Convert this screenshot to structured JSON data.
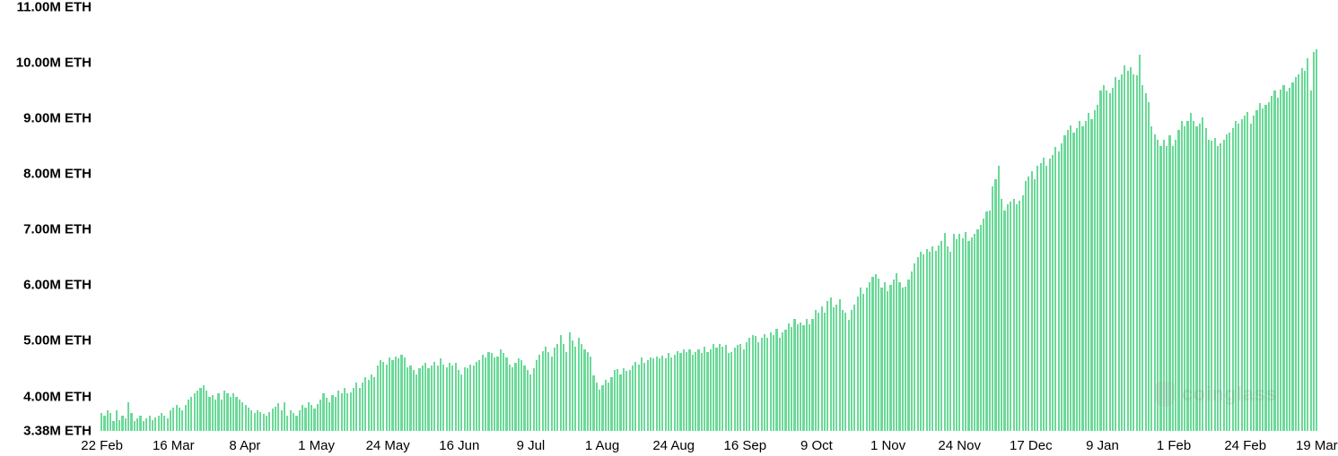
{
  "chart": {
    "type": "bar",
    "background_color": "#ffffff",
    "bar_color": "#6bd998",
    "axis_font_color": "#000000",
    "y_label_fontsize": 15,
    "x_label_fontsize": 15,
    "y_label_fontweight": 600,
    "x_label_fontweight": 500,
    "ymin": 3.38,
    "ymax": 11.0,
    "y_ticks": [
      {
        "v": 11.0,
        "label": "11.00M ETH"
      },
      {
        "v": 10.0,
        "label": "10.00M ETH"
      },
      {
        "v": 9.0,
        "label": "9.00M ETH"
      },
      {
        "v": 8.0,
        "label": "8.00M ETH"
      },
      {
        "v": 7.0,
        "label": "7.00M ETH"
      },
      {
        "v": 6.0,
        "label": "6.00M ETH"
      },
      {
        "v": 5.0,
        "label": "5.00M ETH"
      },
      {
        "v": 4.0,
        "label": "4.00M ETH"
      },
      {
        "v": 3.38,
        "label": "3.38M ETH"
      }
    ],
    "x_ticks": [
      {
        "label": "22 Feb"
      },
      {
        "label": "16 Mar"
      },
      {
        "label": "8 Apr"
      },
      {
        "label": "1 May"
      },
      {
        "label": "24 May"
      },
      {
        "label": "16 Jun"
      },
      {
        "label": "9 Jul"
      },
      {
        "label": "1 Aug"
      },
      {
        "label": "24 Aug"
      },
      {
        "label": "16 Sep"
      },
      {
        "label": "9 Oct"
      },
      {
        "label": "1 Nov"
      },
      {
        "label": "24 Nov"
      },
      {
        "label": "17 Dec"
      },
      {
        "label": "9 Jan"
      },
      {
        "label": "1 Feb"
      },
      {
        "label": "24 Feb"
      },
      {
        "label": "19 Mar"
      }
    ],
    "values": [
      3.7,
      3.65,
      3.75,
      3.7,
      3.55,
      3.75,
      3.58,
      3.65,
      3.6,
      3.9,
      3.7,
      3.55,
      3.6,
      3.65,
      3.55,
      3.6,
      3.65,
      3.58,
      3.62,
      3.65,
      3.7,
      3.65,
      3.6,
      3.75,
      3.8,
      3.85,
      3.8,
      3.75,
      3.85,
      3.95,
      4.0,
      4.05,
      4.1,
      4.15,
      4.2,
      4.1,
      4.0,
      4.02,
      3.95,
      4.05,
      3.95,
      4.1,
      4.05,
      4.0,
      4.05,
      4.0,
      3.95,
      3.9,
      3.85,
      3.8,
      3.75,
      3.7,
      3.75,
      3.72,
      3.68,
      3.65,
      3.72,
      3.78,
      3.82,
      3.88,
      3.75,
      3.9,
      3.65,
      3.75,
      3.7,
      3.65,
      3.75,
      3.85,
      3.8,
      3.9,
      3.85,
      3.78,
      3.87,
      3.95,
      4.05,
      3.97,
      3.9,
      4.03,
      4.0,
      4.1,
      4.05,
      4.15,
      4.05,
      4.08,
      4.16,
      4.25,
      4.15,
      4.25,
      4.35,
      4.3,
      4.4,
      4.35,
      4.55,
      4.65,
      4.62,
      4.58,
      4.7,
      4.65,
      4.72,
      4.68,
      4.75,
      4.7,
      4.52,
      4.55,
      4.48,
      4.4,
      4.5,
      4.55,
      4.6,
      4.5,
      4.55,
      4.62,
      4.55,
      4.68,
      4.58,
      4.52,
      4.6,
      4.55,
      4.6,
      4.47,
      4.4,
      4.52,
      4.5,
      4.58,
      4.56,
      4.62,
      4.66,
      4.75,
      4.7,
      4.8,
      4.78,
      4.7,
      4.72,
      4.85,
      4.78,
      4.7,
      4.58,
      4.52,
      4.6,
      4.68,
      4.65,
      4.55,
      4.48,
      4.4,
      4.5,
      4.65,
      4.75,
      4.82,
      4.9,
      4.8,
      4.72,
      4.88,
      4.95,
      5.1,
      4.95,
      4.8,
      5.15,
      5.0,
      4.9,
      5.05,
      4.95,
      4.85,
      4.8,
      4.72,
      4.38,
      4.25,
      4.12,
      4.2,
      4.3,
      4.25,
      4.35,
      4.47,
      4.49,
      4.4,
      4.5,
      4.46,
      4.48,
      4.55,
      4.62,
      4.58,
      4.7,
      4.6,
      4.65,
      4.7,
      4.68,
      4.72,
      4.68,
      4.74,
      4.68,
      4.78,
      4.7,
      4.75,
      4.82,
      4.78,
      4.85,
      4.8,
      4.85,
      4.75,
      4.8,
      4.85,
      4.78,
      4.9,
      4.8,
      4.85,
      4.95,
      4.88,
      4.95,
      4.9,
      4.92,
      4.78,
      4.8,
      4.88,
      4.92,
      4.95,
      4.85,
      4.98,
      5.05,
      5.1,
      5.08,
      4.97,
      5.05,
      5.12,
      5.05,
      5.15,
      5.1,
      5.22,
      5.05,
      5.15,
      5.2,
      5.32,
      5.25,
      5.4,
      5.3,
      5.33,
      5.28,
      5.4,
      5.3,
      5.4,
      5.55,
      5.5,
      5.62,
      5.5,
      5.72,
      5.78,
      5.6,
      5.65,
      5.75,
      5.55,
      5.5,
      5.38,
      5.55,
      5.65,
      5.8,
      5.95,
      5.85,
      5.95,
      6.05,
      6.15,
      6.2,
      6.12,
      5.95,
      6.05,
      5.9,
      6.0,
      6.1,
      6.22,
      6.05,
      5.95,
      5.98,
      6.1,
      6.25,
      6.4,
      6.5,
      6.6,
      6.55,
      6.65,
      6.6,
      6.7,
      6.62,
      6.72,
      6.8,
      6.94,
      6.7,
      6.6,
      6.92,
      6.82,
      6.92,
      6.85,
      6.96,
      6.8,
      6.86,
      6.92,
      7.0,
      7.08,
      7.2,
      7.32,
      7.35,
      7.78,
      7.9,
      8.15,
      7.55,
      7.35,
      7.45,
      7.5,
      7.55,
      7.45,
      7.52,
      7.62,
      7.88,
      7.95,
      8.05,
      7.9,
      8.15,
      8.2,
      8.3,
      8.15,
      8.28,
      8.35,
      8.48,
      8.4,
      8.55,
      8.7,
      8.8,
      8.88,
      8.75,
      8.82,
      8.95,
      8.85,
      8.95,
      9.1,
      8.98,
      9.15,
      9.25,
      9.5,
      9.6,
      9.5,
      9.45,
      9.55,
      9.75,
      9.7,
      9.8,
      9.95,
      9.85,
      9.92,
      9.8,
      9.78,
      10.15,
      9.6,
      9.45,
      9.3,
      8.85,
      8.72,
      8.62,
      8.5,
      8.62,
      8.5,
      8.7,
      8.5,
      8.62,
      8.8,
      8.95,
      8.85,
      8.95,
      9.1,
      8.95,
      8.85,
      8.9,
      9.02,
      8.82,
      8.62,
      8.6,
      8.65,
      8.5,
      8.55,
      8.62,
      8.72,
      8.75,
      8.82,
      8.95,
      8.9,
      8.98,
      9.05,
      9.12,
      8.9,
      9.05,
      9.15,
      9.28,
      9.18,
      9.25,
      9.3,
      9.4,
      9.5,
      9.38,
      9.52,
      9.6,
      9.48,
      9.55,
      9.65,
      9.75,
      9.8,
      9.9,
      9.85,
      10.08,
      9.5,
      10.2,
      10.25
    ],
    "watermark": "coinglass",
    "watermark_color": "#a0a0a0",
    "watermark_fontsize": 22
  }
}
